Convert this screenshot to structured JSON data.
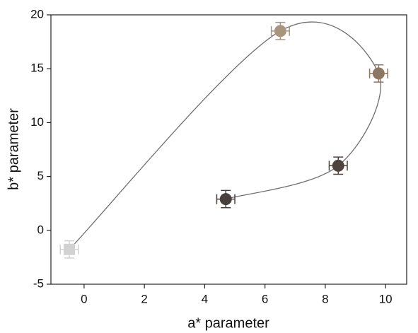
{
  "chart_data": {
    "type": "scatter",
    "x_label": "a* parameter",
    "y_label": "b* parameter",
    "x": [
      -0.49,
      6.51,
      9.77,
      8.43,
      4.7
    ],
    "y": [
      -1.77,
      18.5,
      14.56,
      6.0,
      2.9
    ],
    "xerr": [
      0.3,
      0.3,
      0.3,
      0.3,
      0.3
    ],
    "yerr": [
      0.8,
      0.8,
      0.8,
      0.8,
      0.8
    ],
    "colors": [
      "#d2d2d2",
      "#a8957b",
      "#8c7762",
      "#4e433e",
      "#47403c"
    ],
    "markers": [
      "square",
      "circle",
      "circle",
      "circle",
      "circle"
    ],
    "curve": true,
    "curve_color": "#6e6e6e",
    "xlim": [
      -1.1,
      10.7
    ],
    "xticks": [
      0,
      2,
      4,
      6,
      8,
      10
    ],
    "ylim": [
      -5,
      20
    ],
    "yticks": [
      -5,
      0,
      5,
      10,
      15,
      20
    ]
  }
}
